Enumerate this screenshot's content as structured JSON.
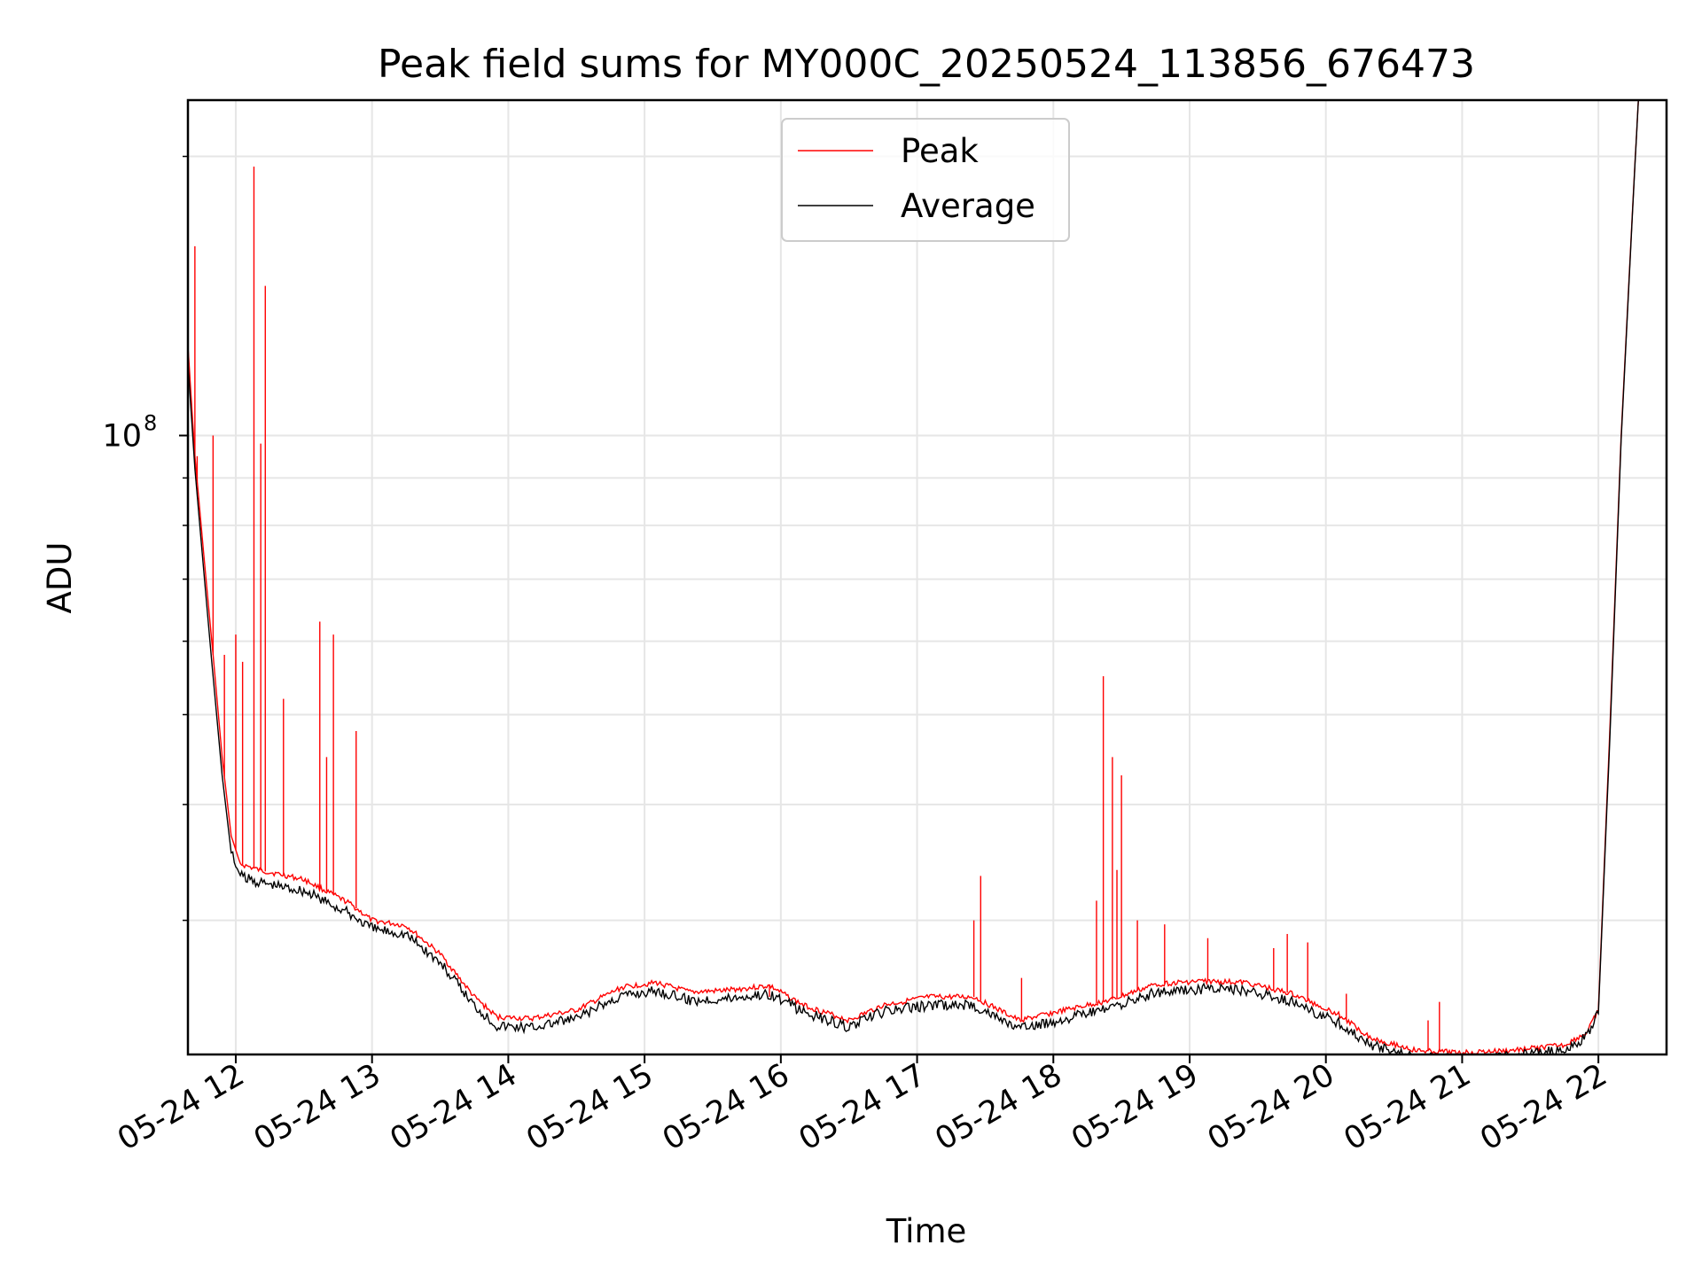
{
  "chart_data": {
    "type": "line",
    "title": "Peak field sums for MY000C_20250524_113856_676473",
    "xlabel": "Time",
    "ylabel": "ADU",
    "y_scale": "log",
    "grid": true,
    "legend_placement": "upper-center",
    "x_ticks": [
      "05-24 12",
      "05-24 13",
      "05-24 14",
      "05-24 15",
      "05-24 16",
      "05-24 17",
      "05-24 18",
      "05-24 19",
      "05-24 20",
      "05-24 21",
      "05-24 22"
    ],
    "y_tick_labels": [
      {
        "value": 100000000,
        "base": "10",
        "exp": "8"
      }
    ],
    "xlim": [
      "2025-05-24 11:38:56",
      "2025-05-24 22:30:00"
    ],
    "ylim": [
      21500000,
      230000000
    ],
    "series": [
      {
        "name": "Peak",
        "color": "#ff0000",
        "points": [
          [
            "2025-05-24 11:38:56",
            125000000
          ],
          [
            "2025-05-24 11:42",
            95000000
          ],
          [
            "2025-05-24 11:46",
            74000000
          ],
          [
            "2025-05-24 11:50",
            58000000
          ],
          [
            "2025-05-24 11:54",
            45000000
          ],
          [
            "2025-05-24 11:58",
            37000000
          ],
          [
            "2025-05-24 12:02",
            34500000
          ],
          [
            "2025-05-24 12:10",
            34000000
          ],
          [
            "2025-05-24 12:30",
            33200000
          ],
          [
            "2025-05-24 12:50",
            31300000
          ],
          [
            "2025-05-24 13:00",
            30000000
          ],
          [
            "2025-05-24 13:15",
            29600000
          ],
          [
            "2025-05-24 13:30",
            27600000
          ],
          [
            "2025-05-24 13:45",
            24800000
          ],
          [
            "2025-05-24 13:55",
            23600000
          ],
          [
            "2025-05-24 14:10",
            23500000
          ],
          [
            "2025-05-24 14:30",
            24000000
          ],
          [
            "2025-05-24 14:50",
            25400000
          ],
          [
            "2025-05-24 15:05",
            25700000
          ],
          [
            "2025-05-24 15:20",
            25100000
          ],
          [
            "2025-05-24 15:35",
            25200000
          ],
          [
            "2025-05-24 15:55",
            25500000
          ],
          [
            "2025-05-24 16:10",
            24300000
          ],
          [
            "2025-05-24 16:30",
            23400000
          ],
          [
            "2025-05-24 16:45",
            24300000
          ],
          [
            "2025-05-24 17:05",
            24800000
          ],
          [
            "2025-05-24 17:25",
            24800000
          ],
          [
            "2025-05-24 17:45",
            23400000
          ],
          [
            "2025-05-24 18:05",
            24000000
          ],
          [
            "2025-05-24 18:25",
            24600000
          ],
          [
            "2025-05-24 18:45",
            25600000
          ],
          [
            "2025-05-24 19:05",
            25800000
          ],
          [
            "2025-05-24 19:25",
            25700000
          ],
          [
            "2025-05-24 19:45",
            25000000
          ],
          [
            "2025-05-24 20:05",
            23800000
          ],
          [
            "2025-05-24 20:20",
            22400000
          ],
          [
            "2025-05-24 20:40",
            21700000
          ],
          [
            "2025-05-24 21:00",
            21600000
          ],
          [
            "2025-05-24 21:20",
            21700000
          ],
          [
            "2025-05-24 21:45",
            22000000
          ],
          [
            "2025-05-24 21:55",
            22700000
          ],
          [
            "2025-05-24 22:00",
            24000000
          ],
          [
            "2025-05-24 22:05",
            48000000
          ],
          [
            "2025-05-24 22:10",
            100000000
          ],
          [
            "2025-05-24 22:15",
            175000000
          ],
          [
            "2025-05-24 22:18",
            240000000
          ]
        ],
        "spikes": [
          [
            "2025-05-24 11:42",
            160000000
          ],
          [
            "2025-05-24 11:43",
            95000000
          ],
          [
            "2025-05-24 11:50",
            100000000
          ],
          [
            "2025-05-24 11:55",
            58000000
          ],
          [
            "2025-05-24 12:00",
            61000000
          ],
          [
            "2025-05-24 12:03",
            57000000
          ],
          [
            "2025-05-24 12:08",
            195000000
          ],
          [
            "2025-05-24 12:11",
            98000000
          ],
          [
            "2025-05-24 12:13",
            145000000
          ],
          [
            "2025-05-24 12:21",
            52000000
          ],
          [
            "2025-05-24 12:37",
            63000000
          ],
          [
            "2025-05-24 12:40",
            45000000
          ],
          [
            "2025-05-24 12:43",
            61000000
          ],
          [
            "2025-05-24 12:53",
            48000000
          ],
          [
            "2025-05-24 15:55",
            24800000
          ],
          [
            "2025-05-24 17:25",
            30000000
          ],
          [
            "2025-05-24 17:28",
            33500000
          ],
          [
            "2025-05-24 17:46",
            26000000
          ],
          [
            "2025-05-24 18:19",
            31500000
          ],
          [
            "2025-05-24 18:22",
            55000000
          ],
          [
            "2025-05-24 18:26",
            45000000
          ],
          [
            "2025-05-24 18:28",
            34000000
          ],
          [
            "2025-05-24 18:30",
            43000000
          ],
          [
            "2025-05-24 18:37",
            30000000
          ],
          [
            "2025-05-24 18:49",
            29700000
          ],
          [
            "2025-05-24 19:08",
            28700000
          ],
          [
            "2025-05-24 19:37",
            28000000
          ],
          [
            "2025-05-24 19:43",
            29000000
          ],
          [
            "2025-05-24 19:52",
            28400000
          ],
          [
            "2025-05-24 20:09",
            25000000
          ],
          [
            "2025-05-24 20:45",
            23400000
          ],
          [
            "2025-05-24 20:50",
            24500000
          ]
        ]
      },
      {
        "name": "Average",
        "color": "#000000",
        "points": [
          [
            "2025-05-24 11:38:56",
            120000000
          ],
          [
            "2025-05-24 11:42",
            92000000
          ],
          [
            "2025-05-24 11:46",
            71000000
          ],
          [
            "2025-05-24 11:50",
            55000000
          ],
          [
            "2025-05-24 11:54",
            43000000
          ],
          [
            "2025-05-24 11:58",
            35500000
          ],
          [
            "2025-05-24 12:02",
            33500000
          ],
          [
            "2025-05-24 12:10",
            33000000
          ],
          [
            "2025-05-24 12:30",
            32300000
          ],
          [
            "2025-05-24 12:50",
            30500000
          ],
          [
            "2025-05-24 13:00",
            29400000
          ],
          [
            "2025-05-24 13:15",
            29000000
          ],
          [
            "2025-05-24 13:30",
            27000000
          ],
          [
            "2025-05-24 13:45",
            24300000
          ],
          [
            "2025-05-24 13:55",
            23100000
          ],
          [
            "2025-05-24 14:10",
            23000000
          ],
          [
            "2025-05-24 14:30",
            23500000
          ],
          [
            "2025-05-24 14:50",
            24900000
          ],
          [
            "2025-05-24 15:05",
            25200000
          ],
          [
            "2025-05-24 15:20",
            24600000
          ],
          [
            "2025-05-24 15:35",
            24700000
          ],
          [
            "2025-05-24 15:55",
            25000000
          ],
          [
            "2025-05-24 16:10",
            23900000
          ],
          [
            "2025-05-24 16:30",
            23000000
          ],
          [
            "2025-05-24 16:45",
            23900000
          ],
          [
            "2025-05-24 17:05",
            24300000
          ],
          [
            "2025-05-24 17:25",
            24300000
          ],
          [
            "2025-05-24 17:45",
            22900000
          ],
          [
            "2025-05-24 18:05",
            23500000
          ],
          [
            "2025-05-24 18:25",
            24100000
          ],
          [
            "2025-05-24 18:45",
            25100000
          ],
          [
            "2025-05-24 19:05",
            25300000
          ],
          [
            "2025-05-24 19:25",
            25200000
          ],
          [
            "2025-05-24 19:45",
            24500000
          ],
          [
            "2025-05-24 20:05",
            23300000
          ],
          [
            "2025-05-24 20:20",
            22000000
          ],
          [
            "2025-05-24 20:40",
            21350000
          ],
          [
            "2025-05-24 21:00",
            21250000
          ],
          [
            "2025-05-24 21:20",
            21400000
          ],
          [
            "2025-05-24 21:45",
            21750000
          ],
          [
            "2025-05-24 21:55",
            22500000
          ],
          [
            "2025-05-24 22:00",
            23800000
          ],
          [
            "2025-05-24 22:05",
            47000000
          ],
          [
            "2025-05-24 22:10",
            99000000
          ],
          [
            "2025-05-24 22:15",
            174000000
          ],
          [
            "2025-05-24 22:18",
            240000000
          ]
        ]
      }
    ]
  }
}
